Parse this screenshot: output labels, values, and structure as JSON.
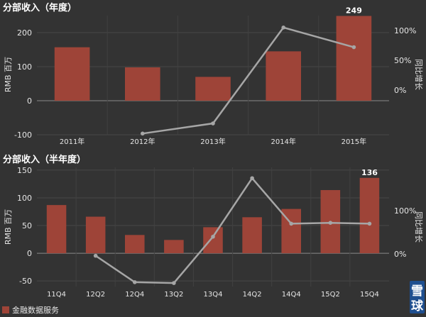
{
  "chart_data": [
    {
      "type": "bar",
      "title": "分部收入（年度）",
      "categories": [
        "2011年",
        "2012年",
        "2013年",
        "2014年",
        "2015年"
      ],
      "series": [
        {
          "name": "金融数据服务",
          "type": "bar",
          "axis": "left",
          "values": [
            157,
            98,
            70,
            145,
            249
          ]
        },
        {
          "type": "line",
          "axis": "right",
          "values": [
            null,
            -73,
            -56,
            105,
            72
          ]
        }
      ],
      "data_labels": [
        null,
        null,
        null,
        null,
        "249"
      ],
      "ylabel": "RMB 百万",
      "y2label": "同比增长",
      "ylim": [
        -100,
        250
      ],
      "yticks": [
        -100,
        0,
        100,
        200
      ],
      "ytick_labels": [
        "-100",
        "0",
        "100",
        "200"
      ],
      "y2lim": [
        -75,
        125
      ],
      "y2ticks": [
        0,
        50,
        100
      ],
      "y2tick_labels": [
        "0%",
        "50%",
        "100%"
      ],
      "colors": {
        "bar": "#9e4438",
        "line": "#a6a6a6"
      }
    },
    {
      "type": "bar",
      "title": "分部收入（半年度）",
      "categories": [
        "11Q4",
        "12Q2",
        "12Q4",
        "13Q2",
        "13Q4",
        "14Q2",
        "14Q4",
        "15Q2",
        "15Q4"
      ],
      "series": [
        {
          "name": "金融数据服务",
          "type": "bar",
          "axis": "left",
          "values": [
            87,
            66,
            33,
            24,
            47,
            65,
            80,
            114,
            136
          ]
        },
        {
          "type": "line",
          "axis": "right",
          "values": [
            null,
            -4,
            -65,
            -67,
            40,
            175,
            70,
            72,
            70
          ]
        }
      ],
      "data_labels": [
        null,
        null,
        null,
        null,
        null,
        null,
        null,
        null,
        "136"
      ],
      "ylabel": "RMB 百万",
      "y2label": "同比增长",
      "ylim": [
        -60,
        155
      ],
      "yticks": [
        -50,
        0,
        50,
        100,
        150
      ],
      "ytick_labels": [
        "-50",
        "0",
        "50",
        "100",
        "150"
      ],
      "y2lim": [
        -75,
        200
      ],
      "y2ticks": [
        0,
        100
      ],
      "y2tick_labels": [
        "0%",
        "100%"
      ],
      "colors": {
        "bar": "#9e4438",
        "line": "#a6a6a6"
      }
    }
  ],
  "legend": {
    "label": "金融数据服务",
    "color": "#9e4438",
    "position": "bottom-left"
  },
  "watermark": {
    "line1": "雪",
    "line2": "球"
  }
}
